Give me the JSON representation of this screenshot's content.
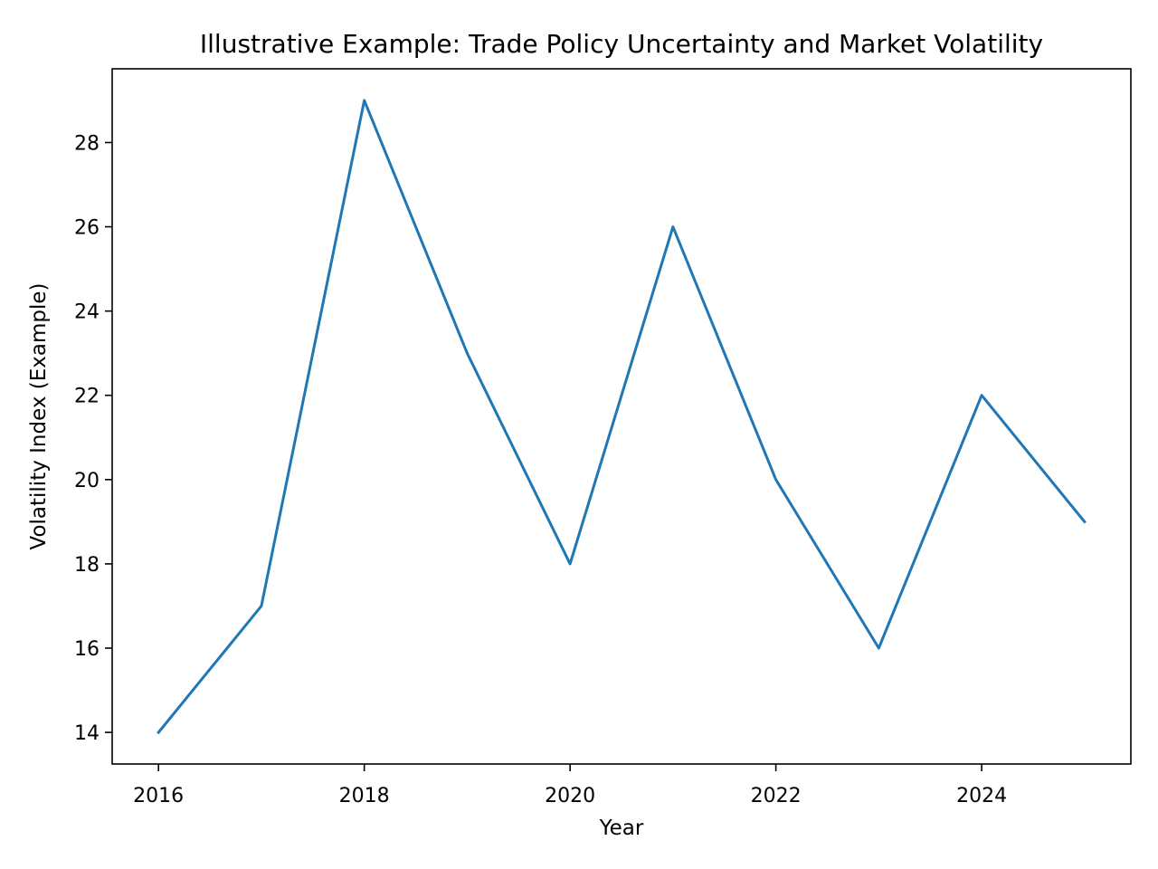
{
  "chart_data": {
    "type": "line",
    "title": "Illustrative Example: Trade Policy Uncertainty and Market Volatility",
    "xlabel": "Year",
    "ylabel": "Volatility Index (Example)",
    "x": [
      2016,
      2017,
      2018,
      2019,
      2020,
      2021,
      2022,
      2023,
      2024,
      2025
    ],
    "series": [
      {
        "values": [
          14,
          17,
          29,
          23,
          18,
          26,
          20,
          16,
          22,
          19
        ],
        "color": "#1f77b4"
      }
    ],
    "xlim": [
      2015.55,
      2025.45
    ],
    "ylim": [
      13.25,
      29.75
    ],
    "xticks": [
      2016,
      2018,
      2020,
      2022,
      2024
    ],
    "yticks": [
      14,
      16,
      18,
      20,
      22,
      24,
      26,
      28
    ],
    "grid": false,
    "legend": "none"
  }
}
